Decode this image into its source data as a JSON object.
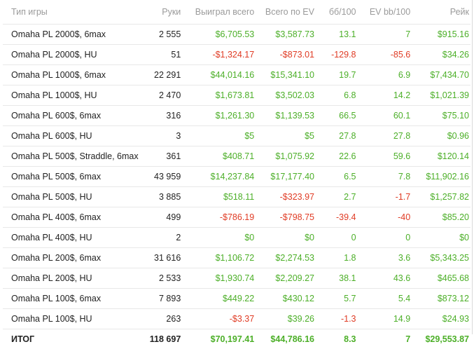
{
  "headers": [
    "Тип игры",
    "Руки",
    "Выиграл всего",
    "Всего по EV",
    "бб/100",
    "EV bb/100",
    "Рейк"
  ],
  "rows": [
    {
      "game": "Omaha PL 2000$, 6max",
      "hands": "2 555",
      "won": "$6,705.53",
      "ev": "$3,587.73",
      "bb100": "13.1",
      "evbb100": "7",
      "rake": "$915.16"
    },
    {
      "game": "Omaha PL 2000$, HU",
      "hands": "51",
      "won": "-$1,324.17",
      "ev": "-$873.01",
      "bb100": "-129.8",
      "evbb100": "-85.6",
      "rake": "$34.26"
    },
    {
      "game": "Omaha PL 1000$, 6max",
      "hands": "22 291",
      "won": "$44,014.16",
      "ev": "$15,341.10",
      "bb100": "19.7",
      "evbb100": "6.9",
      "rake": "$7,434.70"
    },
    {
      "game": "Omaha PL 1000$, HU",
      "hands": "2 470",
      "won": "$1,673.81",
      "ev": "$3,502.03",
      "bb100": "6.8",
      "evbb100": "14.2",
      "rake": "$1,021.39"
    },
    {
      "game": "Omaha PL 600$, 6max",
      "hands": "316",
      "won": "$1,261.30",
      "ev": "$1,139.53",
      "bb100": "66.5",
      "evbb100": "60.1",
      "rake": "$75.10"
    },
    {
      "game": "Omaha PL 600$, HU",
      "hands": "3",
      "won": "$5",
      "ev": "$5",
      "bb100": "27.8",
      "evbb100": "27.8",
      "rake": "$0.96"
    },
    {
      "game": "Omaha PL 500$, Straddle, 6max",
      "hands": "361",
      "won": "$408.71",
      "ev": "$1,075.92",
      "bb100": "22.6",
      "evbb100": "59.6",
      "rake": "$120.14"
    },
    {
      "game": "Omaha PL 500$, 6max",
      "hands": "43 959",
      "won": "$14,237.84",
      "ev": "$17,177.40",
      "bb100": "6.5",
      "evbb100": "7.8",
      "rake": "$11,902.16"
    },
    {
      "game": "Omaha PL 500$, HU",
      "hands": "3 885",
      "won": "$518.11",
      "ev": "-$323.97",
      "bb100": "2.7",
      "evbb100": "-1.7",
      "rake": "$1,257.82"
    },
    {
      "game": "Omaha PL 400$, 6max",
      "hands": "499",
      "won": "-$786.19",
      "ev": "-$798.75",
      "bb100": "-39.4",
      "evbb100": "-40",
      "rake": "$85.20"
    },
    {
      "game": "Omaha PL 400$, HU",
      "hands": "2",
      "won": "$0",
      "ev": "$0",
      "bb100": "0",
      "evbb100": "0",
      "rake": "$0"
    },
    {
      "game": "Omaha PL 200$, 6max",
      "hands": "31 616",
      "won": "$1,106.72",
      "ev": "$2,274.53",
      "bb100": "1.8",
      "evbb100": "3.6",
      "rake": "$5,343.25"
    },
    {
      "game": "Omaha PL 200$, HU",
      "hands": "2 533",
      "won": "$1,930.74",
      "ev": "$2,209.27",
      "bb100": "38.1",
      "evbb100": "43.6",
      "rake": "$465.68"
    },
    {
      "game": "Omaha PL 100$, 6max",
      "hands": "7 893",
      "won": "$449.22",
      "ev": "$430.12",
      "bb100": "5.7",
      "evbb100": "5.4",
      "rake": "$873.12"
    },
    {
      "game": "Omaha PL 100$, HU",
      "hands": "263",
      "won": "-$3.37",
      "ev": "$39.26",
      "bb100": "-1.3",
      "evbb100": "14.9",
      "rake": "$24.93"
    }
  ],
  "total": {
    "game": "ИТОГ",
    "hands": "118 697",
    "won": "$70,197.41",
    "ev": "$44,786.16",
    "bb100": "8.3",
    "evbb100": "7",
    "rake": "$29,553.87"
  },
  "colors": {
    "positive": "#4caf28",
    "negative": "#e03b24",
    "header": "#9a9a9a"
  }
}
